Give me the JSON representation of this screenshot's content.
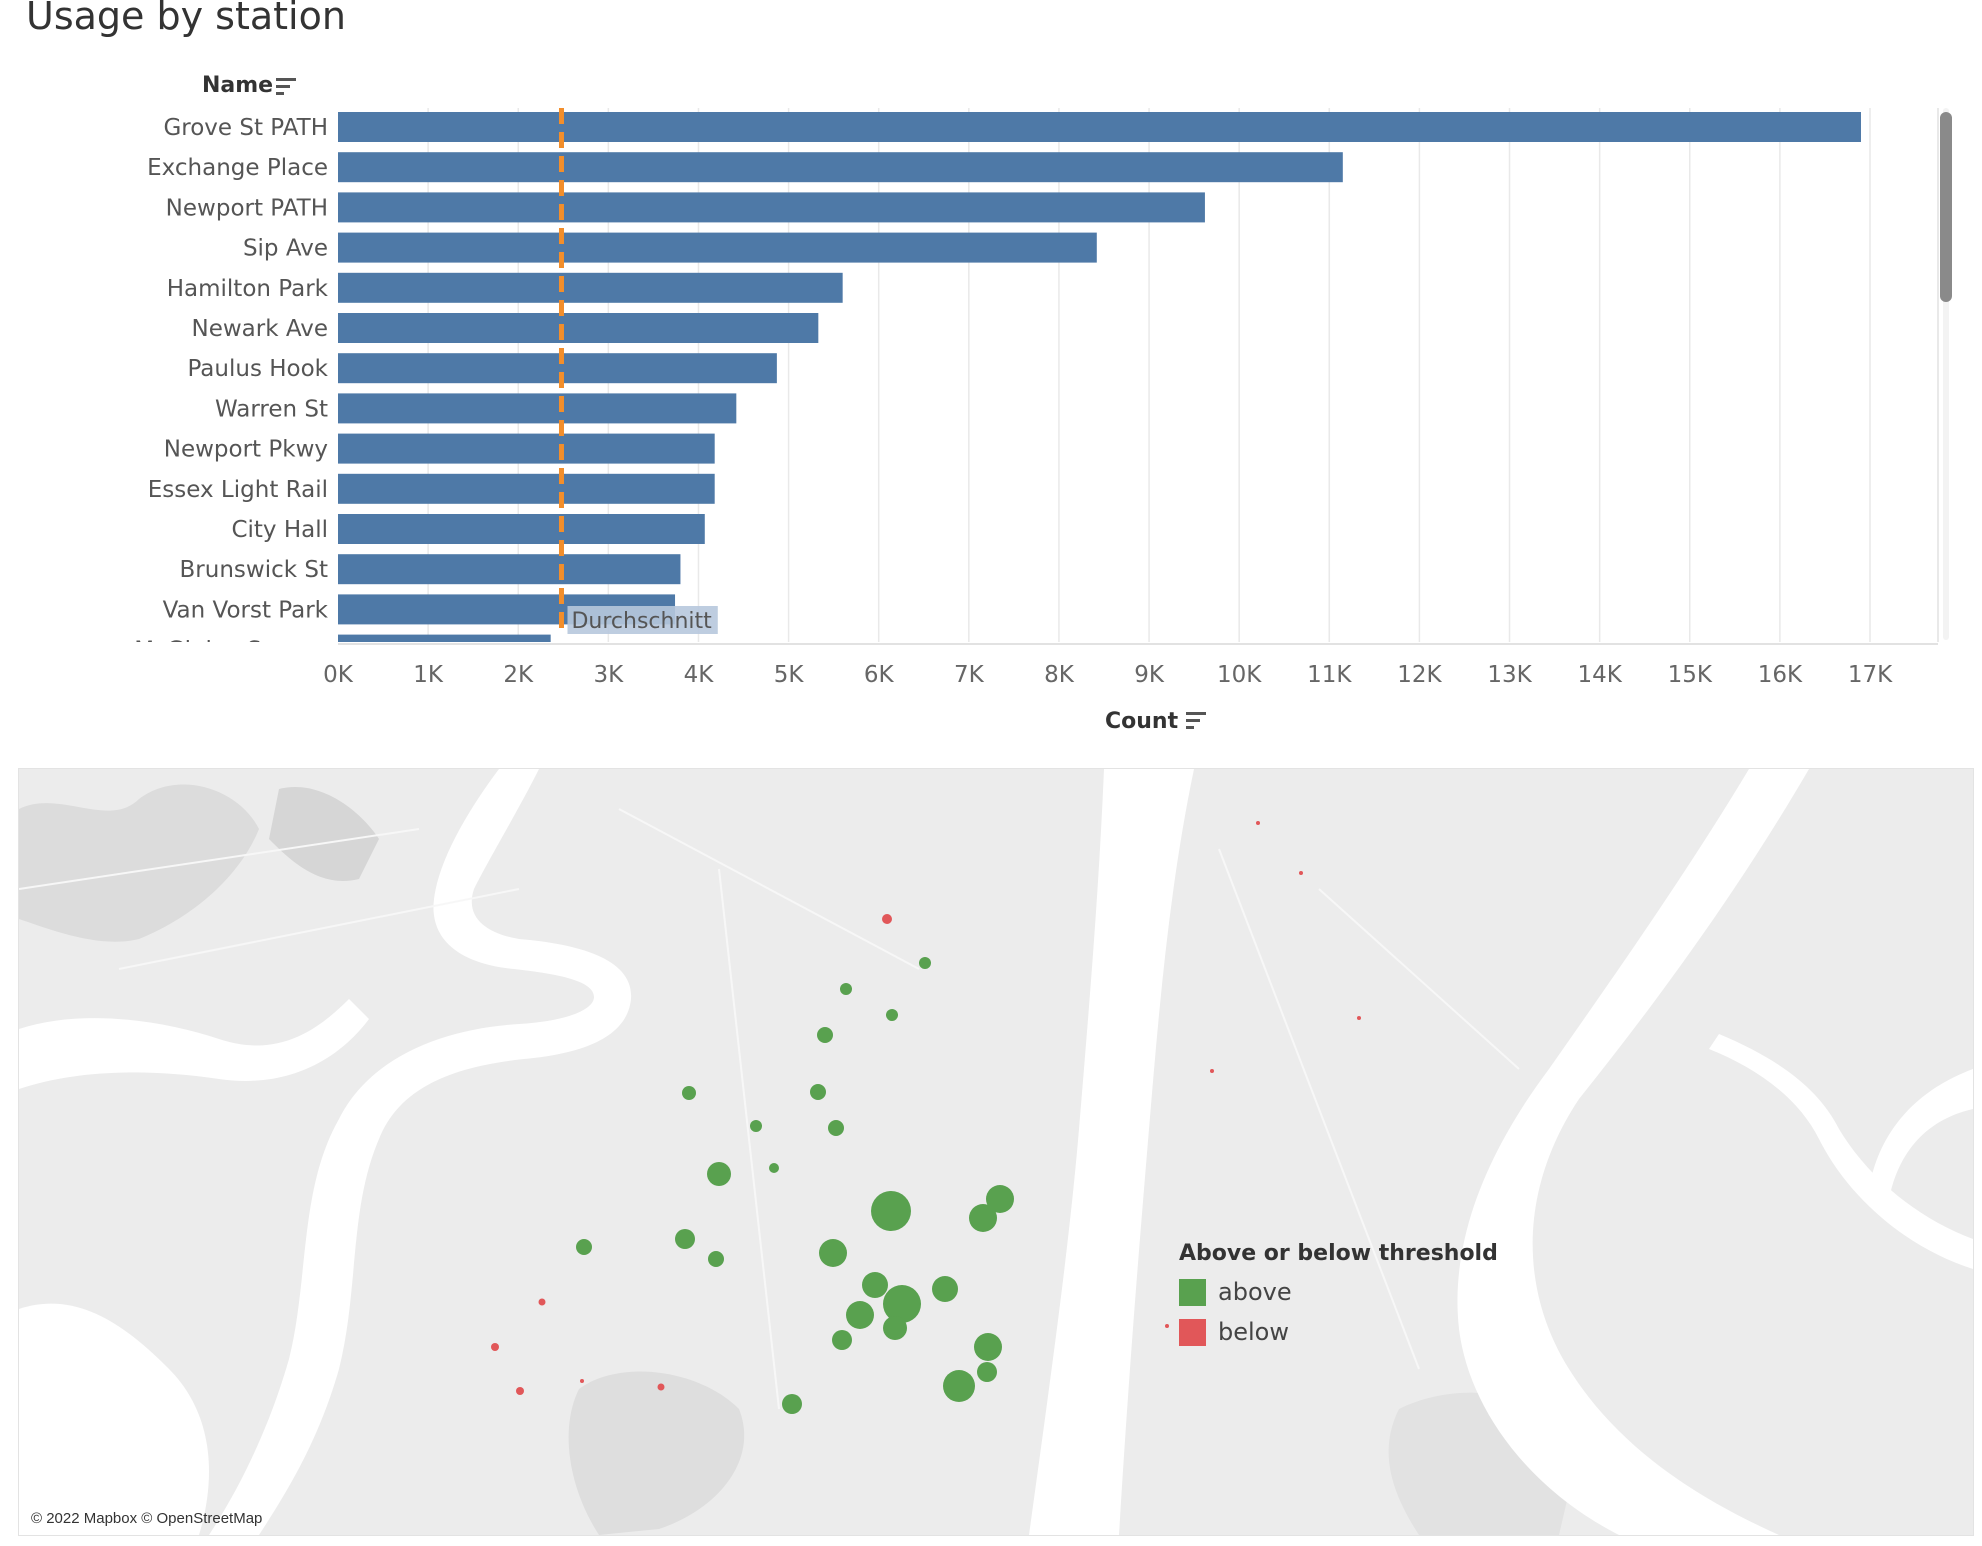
{
  "dashboard": {
    "title": "Usage by station"
  },
  "chart_data": {
    "type": "bar",
    "orientation": "horizontal",
    "row_header": "Name",
    "xlabel": "Count",
    "categories": [
      "Grove St PATH",
      "Exchange Place",
      "Newport PATH",
      "Sip Ave",
      "Hamilton Park",
      "Newark Ave",
      "Paulus Hook",
      "Warren St",
      "Newport Pkwy",
      "Essex Light Rail",
      "City Hall",
      "Brunswick St",
      "Van Vorst Park",
      "McGinley Square"
    ],
    "values": [
      16900,
      11150,
      9620,
      8420,
      5600,
      5330,
      4870,
      4420,
      4180,
      4180,
      4070,
      3800,
      3740,
      2360
    ],
    "xlim": [
      0,
      17000
    ],
    "xticks": [
      0,
      1000,
      2000,
      3000,
      4000,
      5000,
      6000,
      7000,
      8000,
      9000,
      10000,
      11000,
      12000,
      13000,
      14000,
      15000,
      16000,
      17000
    ],
    "xtick_labels": [
      "0K",
      "1K",
      "2K",
      "3K",
      "4K",
      "5K",
      "6K",
      "7K",
      "8K",
      "9K",
      "10K",
      "11K",
      "12K",
      "13K",
      "14K",
      "15K",
      "16K",
      "17K"
    ],
    "reference_line": {
      "label": "Durchschnitt",
      "value": 2480,
      "color": "#f28e2b"
    },
    "bar_color": "#4e79a7",
    "grid": true
  },
  "map": {
    "attribution": "© 2022 Mapbox © OpenStreetMap",
    "legend": {
      "title": "Above or below threshold",
      "items": [
        {
          "label": "above",
          "color": "#59a14f"
        },
        {
          "label": "below",
          "color": "#e15759"
        }
      ]
    }
  }
}
